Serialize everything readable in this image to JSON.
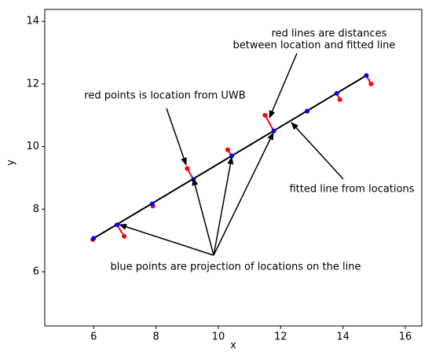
{
  "chart_data": {
    "type": "scatter",
    "xlabel": "x",
    "ylabel": "y",
    "xlim": [
      4.43,
      16.53
    ],
    "ylim": [
      4.27,
      14.38
    ],
    "xticks": [
      6,
      8,
      10,
      12,
      14,
      16
    ],
    "yticks": [
      6,
      8,
      10,
      12,
      14
    ],
    "series": [
      {
        "color": "#ff0000",
        "x": [
          5.97,
          6.98,
          7.9,
          9.0,
          10.3,
          11.5,
          12.85,
          13.9,
          14.9
        ],
        "values": [
          7.03,
          7.13,
          8.1,
          9.3,
          9.9,
          11.0,
          11.13,
          11.5,
          12.0
        ]
      },
      {
        "color": "#0000ff",
        "x": [
          6.0,
          6.75,
          7.88,
          9.2,
          10.43,
          11.78,
          12.85,
          13.8,
          14.75
        ],
        "values": [
          7.07,
          7.5,
          8.17,
          8.95,
          9.7,
          10.5,
          11.13,
          11.7,
          12.27
        ]
      },
      {
        "color": "#000000",
        "x": [
          6.0,
          14.75
        ],
        "values": [
          7.07,
          12.27
        ]
      }
    ],
    "annotations": [
      [
        "red lines are distances",
        "between location and fitted line"
      ],
      [
        "red points is location from UWB"
      ],
      [
        "fitted line from locations"
      ],
      [
        "blue points are projection of locations on the line"
      ]
    ]
  }
}
